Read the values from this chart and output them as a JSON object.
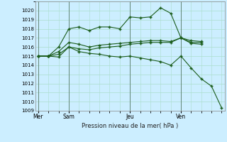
{
  "title": "Pression niveau de la mer( hPa )",
  "bg_color": "#cceeff",
  "grid_color": "#aaddcc",
  "line_color": "#1a5c1a",
  "ylim": [
    1009,
    1021
  ],
  "yticks": [
    1009,
    1010,
    1011,
    1012,
    1013,
    1014,
    1015,
    1016,
    1017,
    1018,
    1019,
    1020
  ],
  "day_labels": [
    "Mer",
    "Sam",
    "Jeu",
    "Ven"
  ],
  "day_positions": [
    0,
    3,
    9,
    14
  ],
  "xlim_min": -0.3,
  "xlim_max": 18.3,
  "series1_x": [
    0,
    1,
    2,
    3,
    4,
    5,
    6,
    7,
    8,
    9,
    10,
    11,
    12,
    13,
    14,
    15,
    16
  ],
  "series1_y": [
    1015.0,
    1015.0,
    1016.0,
    1018.0,
    1018.2,
    1017.8,
    1018.2,
    1018.2,
    1018.0,
    1019.3,
    1019.2,
    1019.3,
    1020.3,
    1019.7,
    1017.0,
    1016.7,
    1016.6
  ],
  "series2_x": [
    0,
    1,
    2,
    3,
    4,
    5,
    6,
    7,
    8,
    9,
    10,
    11,
    12,
    13,
    14,
    15,
    16
  ],
  "series2_y": [
    1015.0,
    1015.0,
    1015.5,
    1016.5,
    1016.3,
    1016.0,
    1016.2,
    1016.3,
    1016.4,
    1016.5,
    1016.6,
    1016.7,
    1016.7,
    1016.6,
    1017.0,
    1016.5,
    1016.5
  ],
  "series3_x": [
    0,
    1,
    2,
    3,
    4,
    5,
    6,
    7,
    8,
    9,
    10,
    11,
    12,
    13,
    14,
    15,
    16
  ],
  "series3_y": [
    1015.0,
    1015.0,
    1015.2,
    1016.0,
    1015.8,
    1015.7,
    1015.9,
    1016.0,
    1016.1,
    1016.3,
    1016.4,
    1016.5,
    1016.5,
    1016.5,
    1017.0,
    1016.4,
    1016.3
  ],
  "series4_x": [
    0,
    1,
    2,
    3,
    4,
    5,
    6,
    7,
    8,
    9,
    10,
    11,
    12,
    13,
    14,
    15,
    16,
    17,
    18
  ],
  "series4_y": [
    1015.0,
    1015.0,
    1014.9,
    1016.0,
    1015.5,
    1015.3,
    1015.2,
    1015.0,
    1014.9,
    1015.0,
    1014.8,
    1014.6,
    1014.4,
    1014.0,
    1015.0,
    1013.7,
    1012.5,
    1011.7,
    1009.3
  ]
}
